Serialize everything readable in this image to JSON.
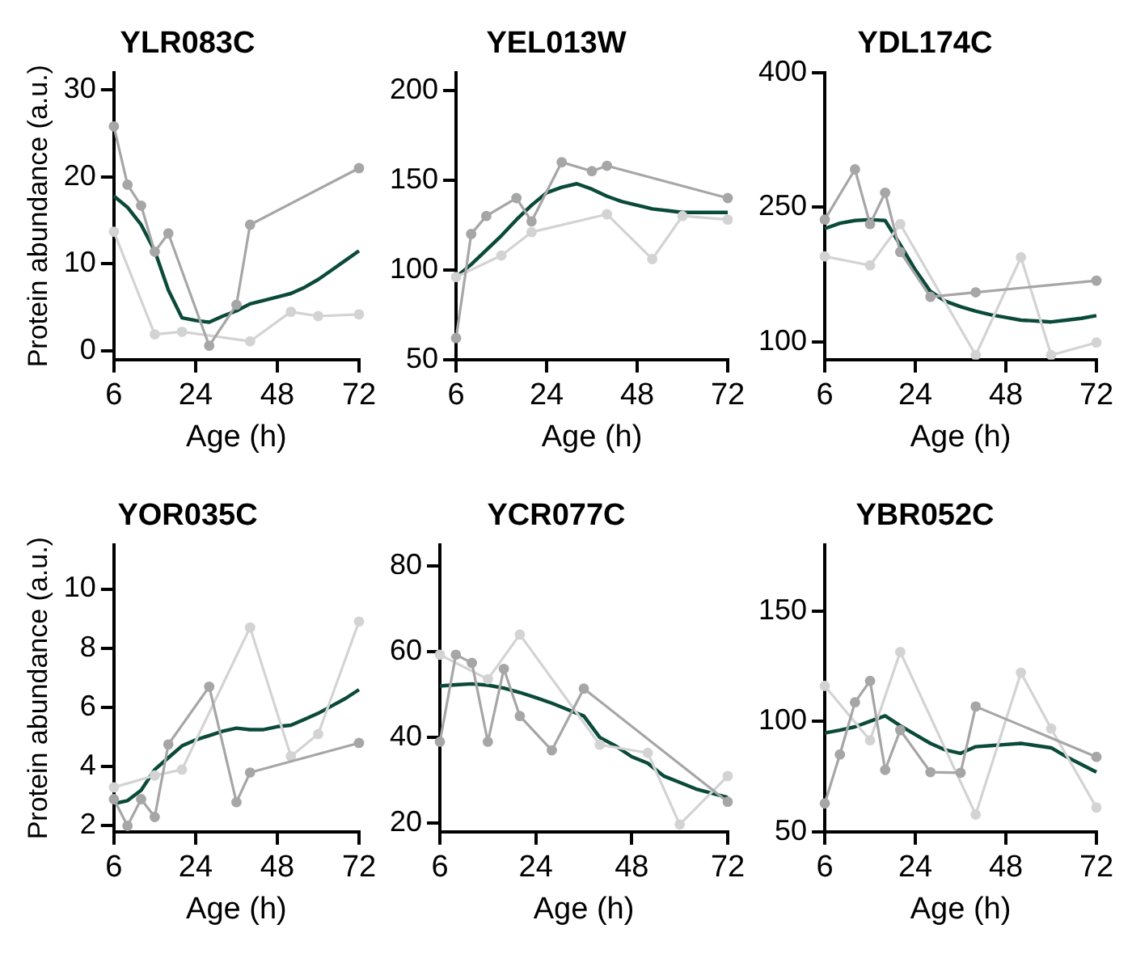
{
  "chart_data": [
    {
      "type": "line",
      "title": "YLR083C",
      "xlabel": "Age (h)",
      "ylabel": "Protein abundance (a.u.)",
      "categories": [
        "6",
        null,
        null,
        null,
        null,
        null,
        "24",
        null,
        null,
        null,
        null,
        null,
        "48",
        null,
        null,
        null,
        null,
        null,
        "72"
      ],
      "ylim": [
        -1,
        32
      ],
      "yticks": [
        0,
        10,
        20,
        30
      ],
      "series": [
        {
          "color": "#a6a6a6",
          "marker": "circle",
          "values": [
            25.8,
            19.1,
            16.7,
            11.4,
            13.5,
            null,
            null,
            0.6,
            null,
            5.3,
            14.5,
            null,
            null,
            null,
            null,
            null,
            null,
            null,
            21.0
          ]
        },
        {
          "color": "#d3d3d3",
          "marker": "circle",
          "values": [
            13.7,
            null,
            null,
            1.9,
            null,
            2.2,
            null,
            null,
            null,
            null,
            1.1,
            null,
            null,
            4.5,
            null,
            4.0,
            null,
            null,
            4.2
          ]
        },
        {
          "color": "#0b4a3a",
          "marker": "none",
          "values": [
            17.8,
            16.5,
            14.5,
            11.5,
            7,
            3.8,
            3.5,
            3.3,
            4,
            4.6,
            5.4,
            5.8,
            6.2,
            6.6,
            7.3,
            8.2,
            9.3,
            10.4,
            11.5
          ]
        }
      ]
    },
    {
      "type": "line",
      "title": "YEL013W",
      "xlabel": "Age (h)",
      "categories": [
        "6",
        null,
        null,
        null,
        null,
        null,
        "24",
        null,
        null,
        null,
        null,
        null,
        "48",
        null,
        null,
        null,
        null,
        null,
        "72"
      ],
      "ylim": [
        50,
        210
      ],
      "yticks": [
        50,
        100,
        150,
        200
      ],
      "series": [
        {
          "color": "#a6a6a6",
          "marker": "circle",
          "values": [
            62,
            120,
            130,
            null,
            140,
            127,
            null,
            160,
            null,
            155,
            158,
            null,
            null,
            null,
            null,
            null,
            null,
            null,
            140
          ]
        },
        {
          "color": "#d3d3d3",
          "marker": "circle",
          "values": [
            96,
            null,
            null,
            108,
            null,
            121,
            null,
            null,
            null,
            null,
            131,
            null,
            null,
            106,
            null,
            130,
            null,
            null,
            128
          ]
        },
        {
          "color": "#0b4a3a",
          "marker": "none",
          "values": [
            96,
            103,
            111,
            119,
            128,
            136,
            143,
            146,
            148,
            145,
            141,
            138,
            136,
            134,
            133,
            132,
            132,
            132,
            132
          ]
        }
      ]
    },
    {
      "type": "line",
      "title": "YDL174C",
      "xlabel": "Age (h)",
      "categories": [
        "6",
        null,
        null,
        null,
        null,
        null,
        "24",
        null,
        null,
        null,
        null,
        null,
        "48",
        null,
        null,
        null,
        null,
        null,
        "72"
      ],
      "ylim": [
        80,
        400
      ],
      "yticks": [
        100,
        250,
        400
      ],
      "series": [
        {
          "color": "#a6a6a6",
          "marker": "circle",
          "values": [
            236,
            null,
            292,
            231,
            266,
            200,
            null,
            150,
            null,
            null,
            155,
            null,
            null,
            null,
            null,
            null,
            null,
            null,
            168
          ]
        },
        {
          "color": "#d3d3d3",
          "marker": "circle",
          "values": [
            195,
            null,
            null,
            185,
            null,
            231,
            null,
            null,
            null,
            null,
            85,
            null,
            null,
            194,
            null,
            85,
            null,
            null,
            99
          ]
        },
        {
          "color": "#0b4a3a",
          "marker": "none",
          "values": [
            226,
            232,
            235,
            236,
            235,
            208,
            180,
            156,
            145,
            139,
            134,
            130,
            127,
            124,
            123,
            122,
            124,
            126,
            129
          ]
        }
      ]
    },
    {
      "type": "line",
      "title": "YOR035C",
      "xlabel": "Age (h)",
      "ylabel": "Protein abundance (a.u.)",
      "categories": [
        "6",
        null,
        null,
        null,
        null,
        null,
        "24",
        null,
        null,
        null,
        null,
        null,
        "48",
        null,
        null,
        null,
        null,
        null,
        "72"
      ],
      "ylim": [
        1.8,
        11.5
      ],
      "yticks": [
        2,
        4,
        6,
        8,
        10
      ],
      "series": [
        {
          "color": "#a6a6a6",
          "marker": "circle",
          "values": [
            2.9,
            2.0,
            2.9,
            2.3,
            4.75,
            null,
            null,
            6.7,
            null,
            2.8,
            3.8,
            null,
            null,
            null,
            null,
            null,
            null,
            null,
            4.8
          ]
        },
        {
          "color": "#d3d3d3",
          "marker": "circle",
          "values": [
            3.3,
            null,
            null,
            3.7,
            null,
            3.9,
            null,
            null,
            null,
            null,
            8.7,
            null,
            null,
            4.35,
            null,
            5.1,
            null,
            null,
            8.9
          ]
        },
        {
          "color": "#0b4a3a",
          "marker": "none",
          "values": [
            2.75,
            2.85,
            3.2,
            3.9,
            4.3,
            4.7,
            4.9,
            5.05,
            5.2,
            5.3,
            5.25,
            5.25,
            5.35,
            5.4,
            5.6,
            5.8,
            6.05,
            6.3,
            6.6
          ]
        }
      ]
    },
    {
      "type": "line",
      "title": "YCR077C",
      "xlabel": "Age (h)",
      "categories": [
        "6",
        null,
        null,
        null,
        null,
        null,
        "24",
        null,
        null,
        null,
        null,
        null,
        "48",
        null,
        null,
        null,
        null,
        null,
        "72"
      ],
      "ylim": [
        18,
        85
      ],
      "yticks": [
        20,
        40,
        60,
        80
      ],
      "series": [
        {
          "color": "#a6a6a6",
          "marker": "circle",
          "values": [
            39,
            59.3,
            57.4,
            39,
            56,
            45,
            null,
            37,
            null,
            51.4,
            null,
            null,
            null,
            null,
            null,
            null,
            null,
            null,
            25
          ]
        },
        {
          "color": "#d3d3d3",
          "marker": "circle",
          "values": [
            59.3,
            null,
            null,
            53.6,
            null,
            64,
            null,
            null,
            null,
            null,
            38.3,
            null,
            null,
            36.4,
            null,
            19.7,
            null,
            null,
            31
          ]
        },
        {
          "color": "#0b4a3a",
          "marker": "none",
          "values": [
            52,
            52.3,
            52.5,
            52.2,
            51.5,
            50.5,
            49.3,
            48,
            46.5,
            45,
            40,
            38,
            35.5,
            34,
            31,
            29.5,
            28,
            27,
            26
          ]
        }
      ]
    },
    {
      "type": "line",
      "title": "YBR052C",
      "xlabel": "Age (h)",
      "categories": [
        "6",
        null,
        null,
        null,
        null,
        null,
        "24",
        null,
        null,
        null,
        null,
        null,
        "48",
        null,
        null,
        null,
        null,
        null,
        "72"
      ],
      "ylim": [
        50,
        180
      ],
      "yticks": [
        50,
        100,
        150
      ],
      "series": [
        {
          "color": "#a6a6a6",
          "marker": "circle",
          "values": [
            62.8,
            85,
            108.6,
            118.3,
            78,
            96,
            null,
            77,
            null,
            76.7,
            106.7,
            null,
            null,
            null,
            null,
            null,
            null,
            null,
            83.9
          ]
        },
        {
          "color": "#d3d3d3",
          "marker": "circle",
          "values": [
            116,
            null,
            null,
            91.4,
            null,
            131.4,
            null,
            null,
            null,
            null,
            57.8,
            null,
            null,
            122,
            null,
            96.7,
            null,
            null,
            61
          ]
        },
        {
          "color": "#0b4a3a",
          "marker": "none",
          "values": [
            94.7,
            96,
            97.5,
            100,
            102.5,
            98,
            94,
            90,
            87,
            85.5,
            88.5,
            89,
            89.5,
            90,
            89,
            88,
            84,
            80.5,
            77
          ]
        }
      ]
    }
  ]
}
